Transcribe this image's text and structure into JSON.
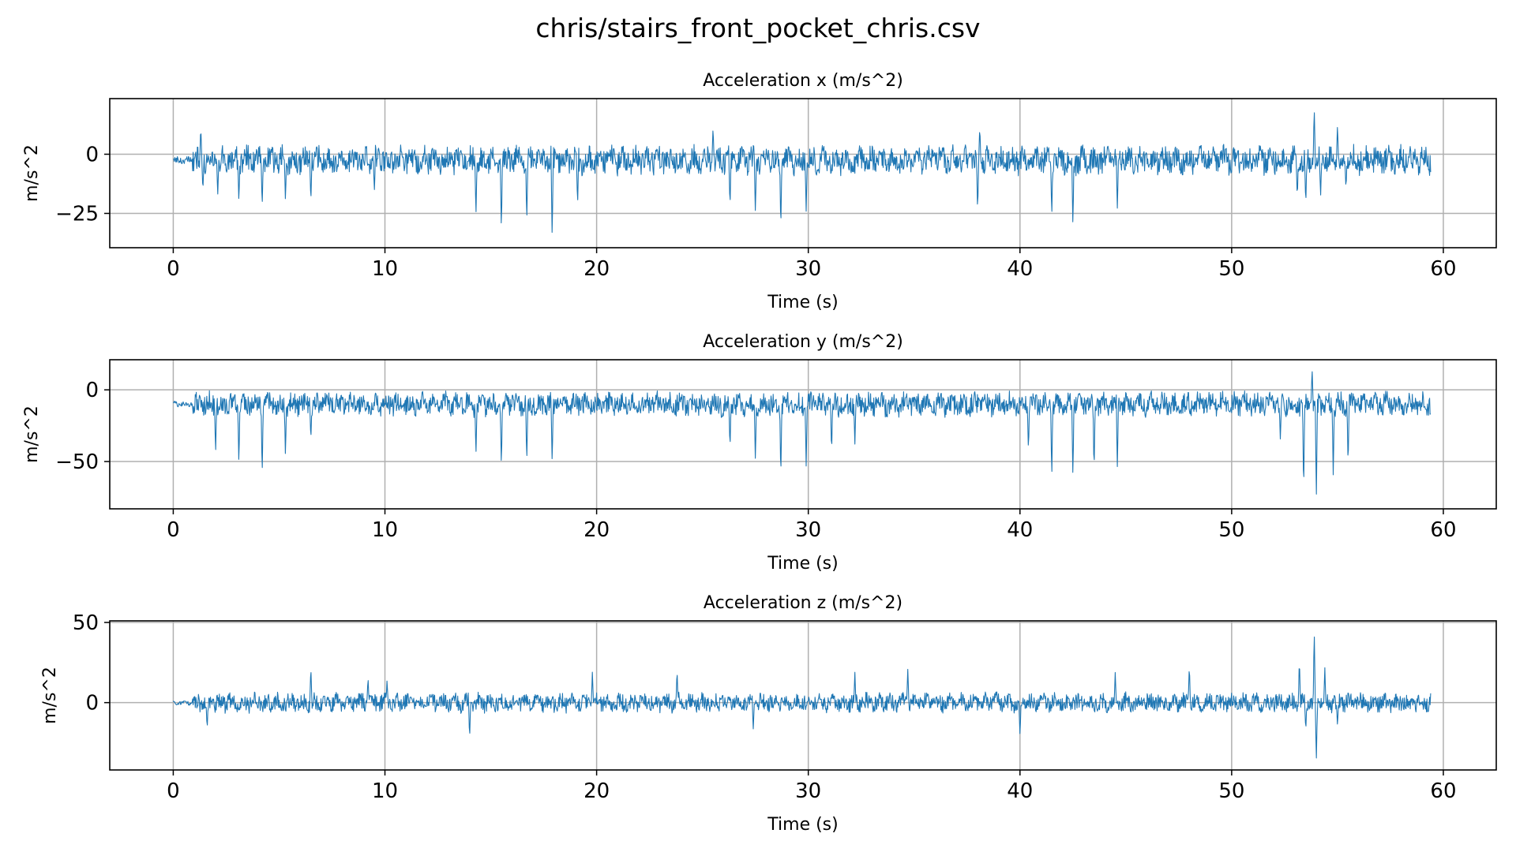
{
  "figure_title": "chris/stairs_front_pocket_chris.csv",
  "colors": {
    "line": "#1f77b4",
    "grid": "#b0b0b0"
  },
  "chart_data": [
    {
      "type": "line",
      "title": "Acceleration x (m/s^2)",
      "xlabel": "Time (s)",
      "ylabel": "m/s^2",
      "xlim": [
        -3,
        62.5
      ],
      "ylim": [
        -39.5,
        23.5
      ],
      "xticks": [
        0,
        10,
        20,
        30,
        40,
        50,
        60
      ],
      "yticks": [
        -25,
        0
      ],
      "ytick_labels": [
        "−25",
        "0"
      ],
      "grid": true,
      "x_range": [
        0,
        59.4
      ],
      "baseline": -2.5,
      "noise_amplitude": 5,
      "spikes": [
        {
          "t": 1.3,
          "v": 12
        },
        {
          "t": 1.4,
          "v": -16
        },
        {
          "t": 2.1,
          "v": -18
        },
        {
          "t": 3.1,
          "v": -21
        },
        {
          "t": 4.2,
          "v": -23
        },
        {
          "t": 5.3,
          "v": -20
        },
        {
          "t": 6.5,
          "v": -21
        },
        {
          "t": 9.5,
          "v": -16
        },
        {
          "t": 14.3,
          "v": -27
        },
        {
          "t": 15.5,
          "v": -33
        },
        {
          "t": 16.7,
          "v": -29
        },
        {
          "t": 17.9,
          "v": -37
        },
        {
          "t": 19.1,
          "v": -22
        },
        {
          "t": 25.5,
          "v": 12
        },
        {
          "t": 26.3,
          "v": -23
        },
        {
          "t": 27.5,
          "v": -25
        },
        {
          "t": 28.7,
          "v": -33
        },
        {
          "t": 29.9,
          "v": -25
        },
        {
          "t": 38.0,
          "v": -25
        },
        {
          "t": 38.1,
          "v": 12
        },
        {
          "t": 41.5,
          "v": -27
        },
        {
          "t": 42.5,
          "v": -31
        },
        {
          "t": 44.6,
          "v": -23
        },
        {
          "t": 53.1,
          "v": -19
        },
        {
          "t": 53.5,
          "v": -22
        },
        {
          "t": 53.9,
          "v": 20
        },
        {
          "t": 54.2,
          "v": -18
        },
        {
          "t": 55.0,
          "v": 13
        },
        {
          "t": 55.4,
          "v": -15
        }
      ]
    },
    {
      "type": "line",
      "title": "Acceleration y (m/s^2)",
      "xlabel": "Time (s)",
      "ylabel": "m/s^2",
      "xlim": [
        -3,
        62.5
      ],
      "ylim": [
        -83,
        21
      ],
      "xticks": [
        0,
        10,
        20,
        30,
        40,
        50,
        60
      ],
      "yticks": [
        -50,
        0
      ],
      "ytick_labels": [
        "−50",
        "0"
      ],
      "grid": true,
      "x_range": [
        0,
        59.4
      ],
      "baseline": -10,
      "noise_amplitude": 7,
      "spikes": [
        {
          "t": 2.0,
          "v": -45
        },
        {
          "t": 3.1,
          "v": -54
        },
        {
          "t": 4.2,
          "v": -62
        },
        {
          "t": 5.3,
          "v": -47
        },
        {
          "t": 6.5,
          "v": -36
        },
        {
          "t": 14.3,
          "v": -47
        },
        {
          "t": 15.5,
          "v": -55
        },
        {
          "t": 16.7,
          "v": -51
        },
        {
          "t": 17.9,
          "v": -53
        },
        {
          "t": 26.3,
          "v": -42
        },
        {
          "t": 27.5,
          "v": -50
        },
        {
          "t": 28.7,
          "v": -64
        },
        {
          "t": 29.9,
          "v": -55
        },
        {
          "t": 31.1,
          "v": -45
        },
        {
          "t": 32.2,
          "v": -38
        },
        {
          "t": 40.4,
          "v": -44
        },
        {
          "t": 41.5,
          "v": -63
        },
        {
          "t": 42.5,
          "v": -62
        },
        {
          "t": 43.5,
          "v": -59
        },
        {
          "t": 44.6,
          "v": -54
        },
        {
          "t": 53.4,
          "v": -74
        },
        {
          "t": 53.8,
          "v": 16
        },
        {
          "t": 54.0,
          "v": -79
        },
        {
          "t": 54.8,
          "v": -63
        },
        {
          "t": 55.5,
          "v": -55
        },
        {
          "t": 52.3,
          "v": -36
        }
      ]
    },
    {
      "type": "line",
      "title": "Acceleration z (m/s^2)",
      "xlabel": "Time (s)",
      "ylabel": "m/s^2",
      "xlim": [
        -3,
        62.5
      ],
      "ylim": [
        -42,
        51
      ],
      "xticks": [
        0,
        10,
        20,
        30,
        40,
        50,
        60
      ],
      "yticks": [
        0,
        50
      ],
      "ytick_labels": [
        "0",
        "50"
      ],
      "grid": true,
      "x_range": [
        0,
        59.4
      ],
      "baseline": 0,
      "noise_amplitude": 5,
      "spikes": [
        {
          "t": 1.6,
          "v": -17
        },
        {
          "t": 6.5,
          "v": 23
        },
        {
          "t": 9.2,
          "v": 16
        },
        {
          "t": 10.1,
          "v": 14
        },
        {
          "t": 14.0,
          "v": -23
        },
        {
          "t": 19.8,
          "v": 19
        },
        {
          "t": 23.8,
          "v": 21
        },
        {
          "t": 27.4,
          "v": -17
        },
        {
          "t": 32.2,
          "v": 19
        },
        {
          "t": 34.7,
          "v": 21
        },
        {
          "t": 40.0,
          "v": -21
        },
        {
          "t": 44.5,
          "v": 19
        },
        {
          "t": 48.0,
          "v": 24
        },
        {
          "t": 53.2,
          "v": 28
        },
        {
          "t": 53.5,
          "v": -18
        },
        {
          "t": 53.9,
          "v": 46
        },
        {
          "t": 54.0,
          "v": -38
        },
        {
          "t": 54.4,
          "v": 22
        },
        {
          "t": 55.0,
          "v": -15
        }
      ]
    }
  ]
}
